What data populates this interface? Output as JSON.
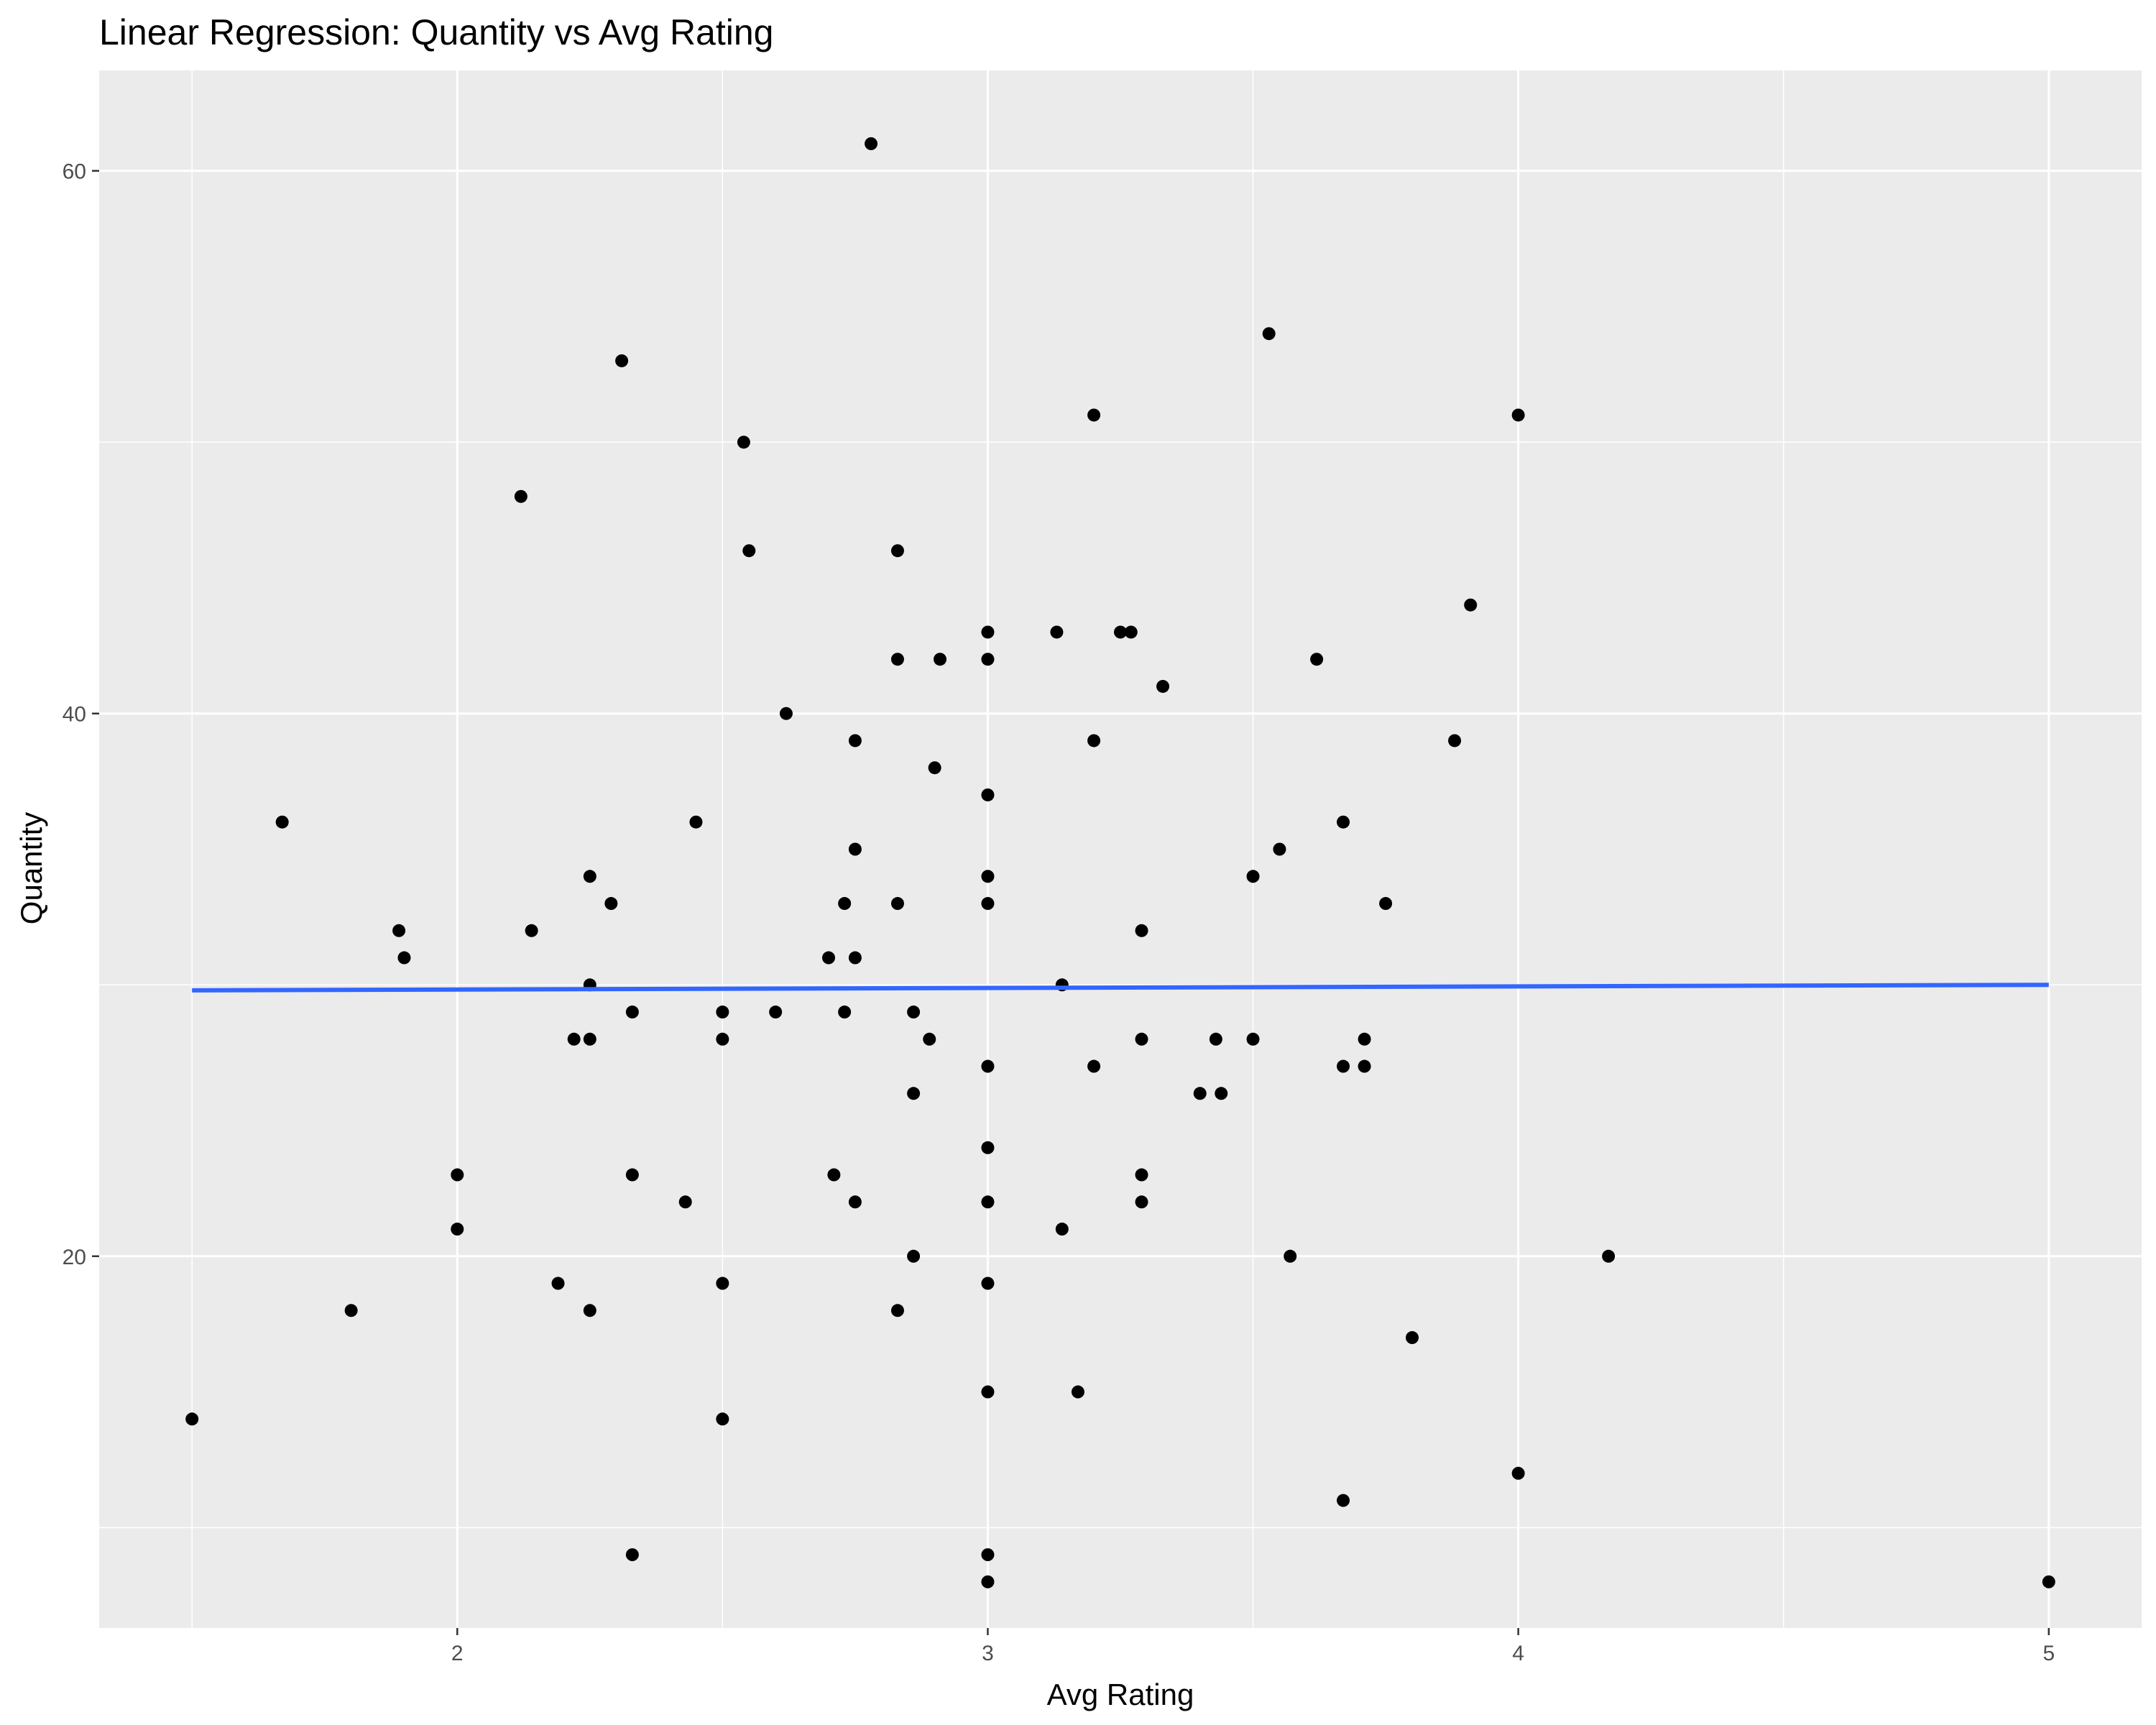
{
  "chart_data": {
    "type": "scatter",
    "title": "Linear Regression: Quantity vs Avg Rating",
    "xlabel": "Avg Rating",
    "ylabel": "Quantity",
    "xlim": [
      1.325,
      5.175
    ],
    "ylim": [
      6.3,
      63.7
    ],
    "x_ticks_major": [
      2,
      3,
      4,
      5
    ],
    "x_ticks_minor": [
      1.5,
      2.5,
      3.5,
      4.5
    ],
    "y_ticks_major": [
      20,
      40,
      60
    ],
    "y_ticks_minor": [
      10,
      30,
      50
    ],
    "grid": true,
    "legend": "none",
    "colors": {
      "panel": "#ebebeb",
      "grid": "#ffffff",
      "point": "#000000",
      "regression_line": "#3366ff",
      "tick_text": "#4d4d4d",
      "tick_mark": "#333333"
    },
    "regression_line": {
      "x": [
        1.5,
        5.0
      ],
      "y": [
        29.8,
        30.0
      ]
    },
    "points": [
      [
        1.5,
        14
      ],
      [
        1.67,
        36
      ],
      [
        1.8,
        18
      ],
      [
        1.89,
        32
      ],
      [
        1.9,
        31
      ],
      [
        2.0,
        23
      ],
      [
        2.0,
        21
      ],
      [
        2.12,
        48
      ],
      [
        2.14,
        32
      ],
      [
        2.19,
        19
      ],
      [
        2.22,
        28
      ],
      [
        2.25,
        34
      ],
      [
        2.25,
        30
      ],
      [
        2.25,
        28
      ],
      [
        2.25,
        18
      ],
      [
        2.29,
        33
      ],
      [
        2.31,
        53
      ],
      [
        2.33,
        29
      ],
      [
        2.33,
        23
      ],
      [
        2.33,
        9
      ],
      [
        2.43,
        22
      ],
      [
        2.45,
        36
      ],
      [
        2.5,
        29
      ],
      [
        2.5,
        28
      ],
      [
        2.5,
        19
      ],
      [
        2.5,
        14
      ],
      [
        2.54,
        50
      ],
      [
        2.55,
        46
      ],
      [
        2.6,
        29
      ],
      [
        2.62,
        40
      ],
      [
        2.7,
        31
      ],
      [
        2.71,
        23
      ],
      [
        2.73,
        33
      ],
      [
        2.73,
        29
      ],
      [
        2.75,
        39
      ],
      [
        2.75,
        35
      ],
      [
        2.75,
        31
      ],
      [
        2.75,
        22
      ],
      [
        2.78,
        61
      ],
      [
        2.83,
        46
      ],
      [
        2.83,
        42
      ],
      [
        2.83,
        33
      ],
      [
        2.83,
        18
      ],
      [
        2.86,
        29
      ],
      [
        2.86,
        26
      ],
      [
        2.86,
        20
      ],
      [
        2.89,
        28
      ],
      [
        2.9,
        38
      ],
      [
        2.91,
        42
      ],
      [
        3.0,
        43
      ],
      [
        3.0,
        42
      ],
      [
        3.0,
        37
      ],
      [
        3.0,
        34
      ],
      [
        3.0,
        33
      ],
      [
        3.0,
        27
      ],
      [
        3.0,
        24
      ],
      [
        3.0,
        22
      ],
      [
        3.0,
        19
      ],
      [
        3.0,
        15
      ],
      [
        3.0,
        9
      ],
      [
        3.0,
        8
      ],
      [
        3.13,
        43
      ],
      [
        3.14,
        30
      ],
      [
        3.14,
        21
      ],
      [
        3.17,
        15
      ],
      [
        3.2,
        51
      ],
      [
        3.2,
        39
      ],
      [
        3.2,
        27
      ],
      [
        3.25,
        43
      ],
      [
        3.27,
        43
      ],
      [
        3.29,
        32
      ],
      [
        3.29,
        28
      ],
      [
        3.29,
        23
      ],
      [
        3.29,
        22
      ],
      [
        3.33,
        41
      ],
      [
        3.4,
        26
      ],
      [
        3.43,
        28
      ],
      [
        3.44,
        26
      ],
      [
        3.5,
        34
      ],
      [
        3.5,
        28
      ],
      [
        3.53,
        54
      ],
      [
        3.55,
        35
      ],
      [
        3.57,
        20
      ],
      [
        3.62,
        42
      ],
      [
        3.67,
        36
      ],
      [
        3.67,
        27
      ],
      [
        3.67,
        11
      ],
      [
        3.71,
        28
      ],
      [
        3.71,
        27
      ],
      [
        3.75,
        33
      ],
      [
        3.8,
        17
      ],
      [
        3.88,
        39
      ],
      [
        3.91,
        44
      ],
      [
        4.0,
        51
      ],
      [
        4.0,
        12
      ],
      [
        4.17,
        20
      ],
      [
        5.0,
        8
      ]
    ]
  }
}
